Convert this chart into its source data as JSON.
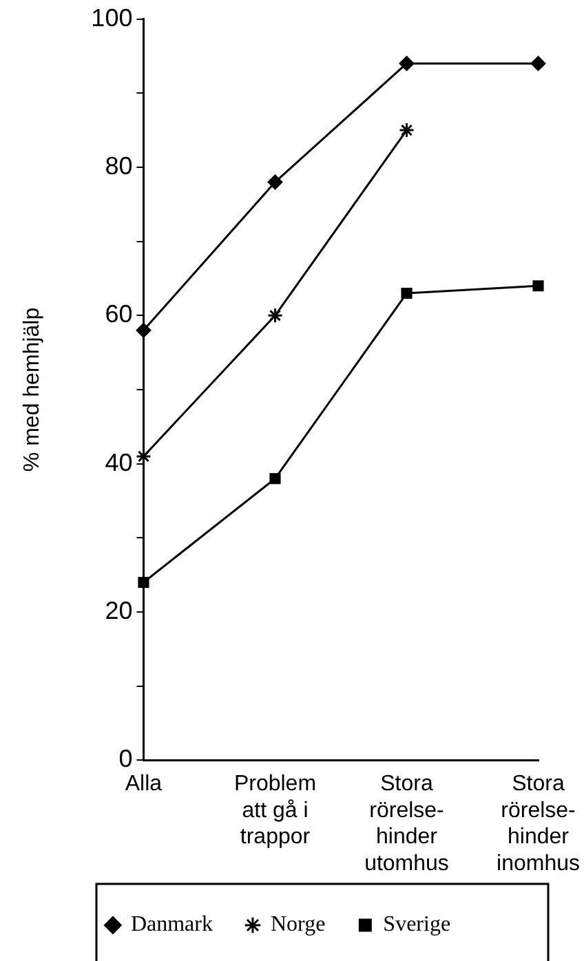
{
  "chart_data": {
    "type": "line",
    "ylabel": "% med hemhjälp",
    "categories": [
      "Alla",
      "Problem\natt gå i\ntrappor",
      "Stora\nrörelse-\nhinder\nutomhus",
      "Stora\nrörelse-\nhinder\ninomhus"
    ],
    "series": [
      {
        "name": "Danmark",
        "color": "#000000",
        "marker": "diamond",
        "values": [
          58,
          78,
          94,
          94
        ]
      },
      {
        "name": "Norge",
        "color": "#000000",
        "marker": "cross",
        "values": [
          41,
          60,
          85,
          null
        ]
      },
      {
        "name": "Sverige",
        "color": "#000000",
        "marker": "square",
        "values": [
          24,
          38,
          63,
          64
        ]
      }
    ],
    "ylim": [
      0,
      100
    ],
    "yticks": [
      0,
      {
        "value": 10,
        "label": null
      },
      20,
      {
        "value": 30,
        "label": null
      },
      40,
      {
        "value": 50,
        "label": null
      },
      60,
      {
        "value": 70,
        "label": null
      },
      80,
      {
        "value": 90,
        "label": null
      },
      100
    ],
    "grid": false,
    "legend": "bottom",
    "line_style": "solid"
  }
}
